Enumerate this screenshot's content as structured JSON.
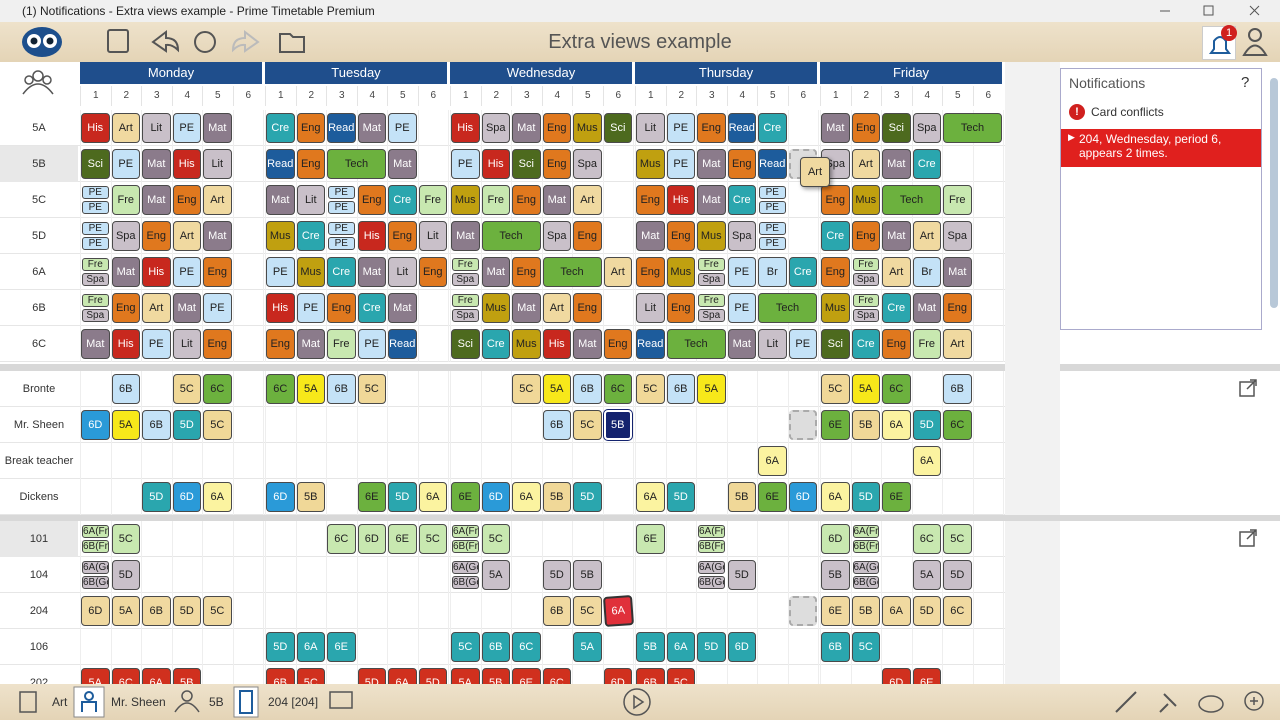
{
  "window_title": "(1) Notifications - Extra views example - Prime Timetable Premium",
  "toolbar": {
    "title": "Extra views example",
    "badge": "1"
  },
  "days": [
    "Monday",
    "Tuesday",
    "Wednesday",
    "Thursday",
    "Friday"
  ],
  "periods": [
    1,
    2,
    3,
    4,
    5,
    6
  ],
  "subject_colors": {
    "His": "#c8281e",
    "Art": "#f0d9a0",
    "Lit": "#c9c0c9",
    "PE": "#c4e2f7",
    "Mat": "#8b7b8b",
    "Cre": "#2aa6ae",
    "Eng": "#e0781e",
    "Read": "#1d5c9c",
    "Spa": "#c9c0c9",
    "Sci": "#4d6a1e",
    "Mus": "#c0a010",
    "Fre": "#c8e8b0",
    "Tech": "#6cb13e",
    "Br": "#c4e2f7"
  },
  "class_colors": {
    "5A": "#f7e81a",
    "5B": "#f0d898",
    "5C": "#f0d898",
    "5D": "#2aa6ae",
    "6A": "#fbf3a0",
    "6B": "#c4e2f7",
    "6C": "#6cb13e",
    "6D": "#2a9ad8",
    "6E": "#6cb13e"
  },
  "class_rows": [
    {
      "name": "5A",
      "cells": [
        "His",
        "Art",
        "Lit",
        "PE",
        "Mat",
        null,
        "Cre",
        "Eng",
        "Read",
        "Mat",
        "PE",
        null,
        "His",
        "Spa",
        "Mat",
        "Eng",
        "Mus",
        "Sci",
        "Lit",
        "PE",
        "Eng",
        "Read",
        "Cre",
        null,
        "Mat",
        "Eng",
        "Sci",
        "Spa",
        {
          "text": "Tech",
          "span": 2
        },
        null
      ]
    },
    {
      "name": "5B",
      "cells": [
        "Sci",
        "PE",
        "Mat",
        "His",
        "Lit",
        null,
        "Read",
        "Eng",
        {
          "text": "Tech",
          "span": 2
        },
        null,
        "Mat",
        null,
        "PE",
        "His",
        "Sci",
        "Eng",
        "Spa",
        null,
        "Mus",
        "PE",
        "Mat",
        "Eng",
        "Read",
        {
          "placeholder": true
        },
        "Spa",
        "Art",
        "Mat",
        "Cre",
        null,
        null
      ]
    },
    {
      "name": "5C",
      "cells": [
        [
          "PE",
          "PE"
        ],
        "Fre",
        "Mat",
        "Eng",
        "Art",
        null,
        "Mat",
        "Lit",
        [
          "PE",
          "PE"
        ],
        "Eng",
        "Cre",
        "Fre",
        "Mus",
        "Fre",
        "Eng",
        "Mat",
        "Art",
        null,
        "Eng",
        "His",
        "Mat",
        "Cre",
        [
          "PE",
          "PE"
        ],
        null,
        "Eng",
        "Mus",
        {
          "text": "Tech",
          "span": 2
        },
        null,
        "Fre",
        null
      ]
    },
    {
      "name": "5D",
      "cells": [
        [
          "PE",
          "PE"
        ],
        "Spa",
        "Eng",
        "Art",
        "Mat",
        null,
        "Mus",
        "Cre",
        [
          "PE",
          "PE"
        ],
        "His",
        "Eng",
        "Lit",
        "Mat",
        {
          "text": "Tech",
          "span": 2
        },
        null,
        "Spa",
        "Eng",
        null,
        "Mat",
        "Eng",
        "Mus",
        "Spa",
        [
          "PE",
          "PE"
        ],
        null,
        "Cre",
        "Eng",
        "Mat",
        "Art",
        "Spa",
        null
      ]
    },
    {
      "name": "6A",
      "cells": [
        [
          "Fre",
          "Spa"
        ],
        "Mat",
        "His",
        "PE",
        "Eng",
        null,
        "PE",
        "Mus",
        "Cre",
        "Mat",
        "Lit",
        "Eng",
        [
          "Fre",
          "Spa"
        ],
        "Mat",
        "Eng",
        {
          "text": "Tech",
          "span": 2
        },
        null,
        "Art",
        "Eng",
        "Mus",
        [
          "Fre",
          "Spa"
        ],
        "PE",
        "Br",
        "Cre",
        "Eng",
        [
          "Fre",
          "Spa"
        ],
        "Art",
        "Br",
        "Mat",
        null
      ]
    },
    {
      "name": "6B",
      "cells": [
        [
          "Fre",
          "Spa"
        ],
        "Eng",
        "Art",
        "Mat",
        "PE",
        null,
        "His",
        "PE",
        "Eng",
        "Cre",
        "Mat",
        null,
        [
          "Fre",
          "Spa"
        ],
        "Mus",
        "Mat",
        "Art",
        "Eng",
        null,
        "Lit",
        "Eng",
        [
          "Fre",
          "Spa"
        ],
        "PE",
        {
          "text": "Tech",
          "span": 2
        },
        null,
        "Mus",
        [
          "Fre",
          "Spa"
        ],
        "Cre",
        "Mat",
        "Eng",
        null
      ]
    },
    {
      "name": "6C",
      "cells": [
        "Mat",
        "His",
        "PE",
        "Lit",
        "Eng",
        null,
        "Eng",
        "Mat",
        "Fre",
        "PE",
        "Read",
        null,
        "Sci",
        "Cre",
        "Mus",
        "His",
        "Mat",
        "Eng",
        "Read",
        {
          "text": "Tech",
          "span": 2
        },
        null,
        "Mat",
        "Lit",
        "PE",
        "Sci",
        "Cre",
        "Eng",
        "Fre",
        "Art",
        null
      ]
    }
  ],
  "teacher_rows": [
    {
      "name": "Bronte",
      "cells": [
        null,
        "6B",
        null,
        "5C",
        "6C",
        null,
        "6C",
        "5A",
        "6B",
        "5C",
        null,
        null,
        null,
        null,
        "5C",
        "5A",
        "6B",
        "6C",
        "5C",
        "6B",
        "5A",
        null,
        null,
        null,
        "5C",
        "5A",
        "6C",
        null,
        "6B",
        null
      ]
    },
    {
      "name": "Mr. Sheen",
      "cells": [
        "6D",
        "5A",
        "6B",
        "5D",
        "5C",
        null,
        null,
        null,
        null,
        null,
        null,
        null,
        null,
        null,
        null,
        "6B",
        "5C",
        {
          "text": "5B",
          "selected": true
        },
        null,
        null,
        null,
        null,
        null,
        {
          "placeholder": true
        },
        "6E",
        "5B",
        "6A",
        "5D",
        "6C",
        null
      ]
    },
    {
      "name": "Break teacher",
      "cells": [
        null,
        null,
        null,
        null,
        null,
        null,
        null,
        null,
        null,
        null,
        null,
        null,
        null,
        null,
        null,
        null,
        null,
        null,
        null,
        null,
        null,
        null,
        "6A",
        null,
        null,
        null,
        null,
        "6A",
        null,
        null
      ]
    },
    {
      "name": "Dickens",
      "cells": [
        null,
        null,
        "5D",
        "6D",
        "6A",
        null,
        "6D",
        "5B",
        null,
        "6E",
        "5D",
        "6A",
        "6E",
        "6D",
        "6A",
        "5B",
        "5D",
        null,
        "6A",
        "5D",
        null,
        "5B",
        "6E",
        "6D",
        "6A",
        "5D",
        "6E",
        null,
        null,
        null
      ]
    }
  ],
  "room_rows": [
    {
      "name": "101",
      "color": "#c8e8b0",
      "cells": [
        [
          "6A(Fr",
          "6B(Fr"
        ],
        "5C",
        null,
        null,
        null,
        null,
        null,
        null,
        "6C",
        "6D",
        "6E",
        "5C",
        [
          "6A(Fr",
          "6B(Fr"
        ],
        "5C",
        null,
        null,
        null,
        null,
        "6E",
        null,
        [
          "6A(Fr",
          "6B(Fr"
        ],
        null,
        null,
        null,
        "6D",
        [
          "6A(Fr",
          "6B(Fr"
        ],
        null,
        "6C",
        "5C",
        null
      ]
    },
    {
      "name": "104",
      "color": "#c9c0c9",
      "cells": [
        [
          "6A(Ge",
          "6B(Ge"
        ],
        "5D",
        null,
        null,
        null,
        null,
        null,
        null,
        null,
        null,
        null,
        null,
        [
          "6A(Ge",
          "6B(Ge"
        ],
        "5A",
        null,
        "5D",
        "5B",
        null,
        null,
        null,
        [
          "6A(Ge",
          "6B(Ge"
        ],
        "5D",
        null,
        null,
        "5B",
        [
          "6A(Ge",
          "6B(Ge"
        ],
        null,
        "5A",
        "5D",
        null
      ]
    },
    {
      "name": "204",
      "color": "#f0d9a0",
      "cells": [
        "6D",
        "5A",
        "6B",
        "5D",
        "5C",
        null,
        null,
        null,
        null,
        null,
        null,
        null,
        null,
        null,
        null,
        "6B",
        "5C",
        {
          "text": "6A",
          "conflict": true
        },
        null,
        null,
        null,
        null,
        null,
        {
          "placeholder": true
        },
        "6E",
        "5B",
        "6A",
        "5D",
        "6C",
        null
      ]
    },
    {
      "name": "106",
      "color": "#2aa6ae",
      "cells": [
        null,
        null,
        null,
        null,
        null,
        null,
        "5D",
        "6A",
        "6E",
        null,
        null,
        null,
        "5C",
        "6B",
        "6C",
        null,
        "5A",
        null,
        "5B",
        "6A",
        "5D",
        "6D",
        null,
        null,
        "6B",
        "5C",
        null,
        null,
        null,
        null
      ]
    },
    {
      "name": "202",
      "color": "#d0301e",
      "cells": [
        "5A",
        "6C",
        "6A",
        "5B",
        null,
        null,
        "6B",
        "5C",
        null,
        "5D",
        "6A",
        "5D",
        "5A",
        "5B",
        "6E",
        "6C",
        null,
        "6D",
        "6B",
        "5C",
        null,
        null,
        null,
        null,
        null,
        null,
        "6D",
        "6E",
        null,
        null
      ]
    }
  ],
  "drag_card": "Art",
  "notifications": {
    "title": "Notifications",
    "help": "?",
    "section": "Card conflicts",
    "message": "204, Wednesday, period 6, appears 2 times."
  },
  "status_bar": {
    "subject": "Art",
    "teacher": "Mr. Sheen",
    "class": "5B",
    "room": "204 [204]"
  }
}
